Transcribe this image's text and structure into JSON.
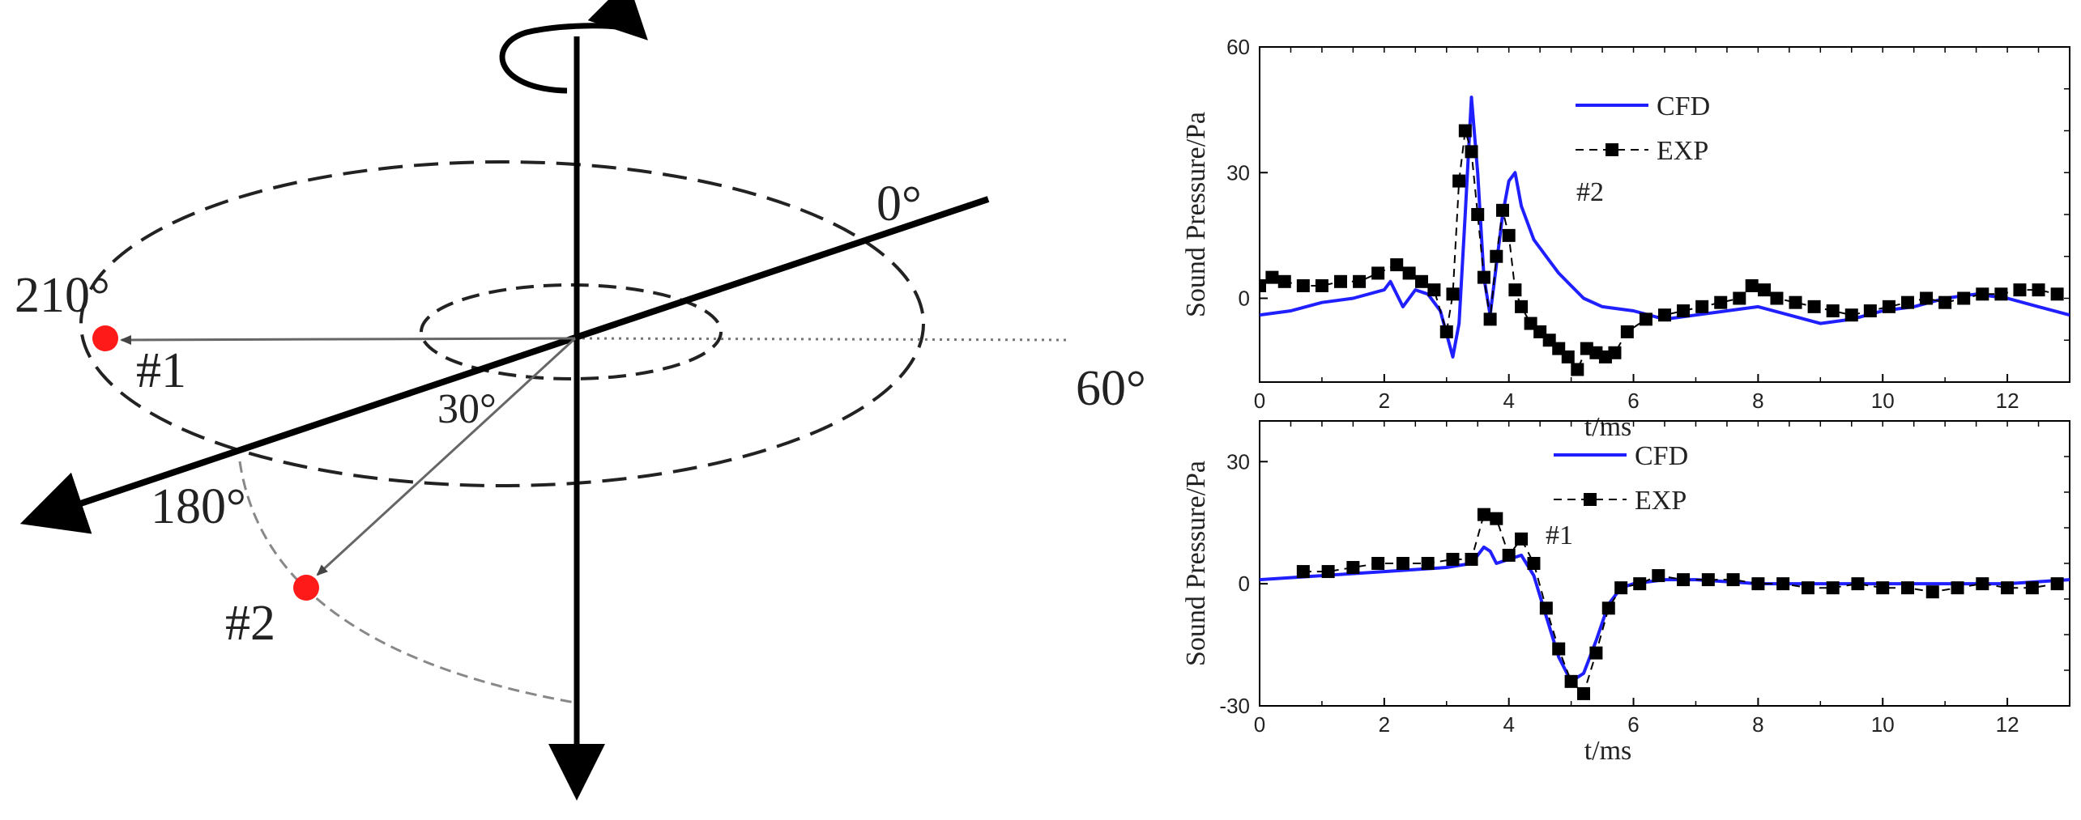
{
  "diagram": {
    "angle_0": "0°",
    "angle_60": "60°",
    "angle_180": "180°",
    "angle_210": "210°",
    "angle_30": "30°",
    "mic_1": "#1",
    "mic_2": "#2",
    "colors": {
      "microphone": "#ff1a1a",
      "axis": "#000000",
      "guide": "#555555"
    }
  },
  "chart_data": [
    {
      "type": "line",
      "xlabel": "t/ms",
      "ylabel": "Sound Pressure/Pa",
      "xlim": [
        0,
        13
      ],
      "ylim": [
        -20,
        60
      ],
      "xticks": [
        0,
        2,
        4,
        6,
        8,
        10,
        12
      ],
      "yticks": [
        0,
        30,
        60
      ],
      "annotation": "#2",
      "legend_position": "top-center",
      "series": [
        {
          "name": "CFD",
          "color": "#1f1fff",
          "style": "line",
          "x": [
            0,
            0.5,
            1.0,
            1.5,
            2.0,
            2.1,
            2.3,
            2.5,
            2.7,
            2.9,
            3.1,
            3.2,
            3.3,
            3.4,
            3.5,
            3.6,
            3.7,
            3.8,
            3.9,
            4.0,
            4.1,
            4.2,
            4.4,
            4.6,
            4.8,
            5.0,
            5.2,
            5.5,
            6.0,
            6.5,
            7.0,
            7.5,
            8.0,
            8.5,
            9.0,
            9.5,
            10.0,
            10.5,
            11.0,
            11.5,
            12.0,
            12.5,
            13.0
          ],
          "y": [
            -4,
            -3,
            -1,
            0,
            2,
            4,
            -2,
            2,
            1,
            -3,
            -14,
            -6,
            20,
            48,
            30,
            5,
            -4,
            8,
            20,
            28,
            30,
            22,
            14,
            10,
            6,
            3,
            0,
            -2,
            -3,
            -5,
            -4,
            -3,
            -2,
            -4,
            -6,
            -5,
            -3,
            -2,
            0,
            1,
            0,
            -2,
            -4
          ]
        },
        {
          "name": "EXP",
          "color": "#000000",
          "style": "dashed-square-markers",
          "x": [
            0.0,
            0.2,
            0.4,
            0.7,
            1.0,
            1.3,
            1.6,
            1.9,
            2.2,
            2.4,
            2.6,
            2.8,
            3.0,
            3.1,
            3.2,
            3.3,
            3.4,
            3.5,
            3.6,
            3.7,
            3.8,
            3.9,
            4.0,
            4.1,
            4.2,
            4.35,
            4.5,
            4.65,
            4.8,
            4.95,
            5.1,
            5.25,
            5.4,
            5.55,
            5.7,
            5.9,
            6.2,
            6.5,
            6.8,
            7.1,
            7.4,
            7.7,
            7.9,
            8.1,
            8.3,
            8.6,
            8.9,
            9.2,
            9.5,
            9.8,
            10.1,
            10.4,
            10.7,
            11.0,
            11.3,
            11.6,
            11.9,
            12.2,
            12.5,
            12.8
          ],
          "y": [
            3,
            5,
            4,
            3,
            3,
            4,
            4,
            6,
            8,
            6,
            4,
            2,
            -8,
            1,
            28,
            40,
            35,
            20,
            5,
            -5,
            10,
            21,
            15,
            2,
            -2,
            -6,
            -8,
            -10,
            -12,
            -14,
            -17,
            -12,
            -13,
            -14,
            -13,
            -8,
            -5,
            -4,
            -3,
            -2,
            -1,
            0,
            3,
            2,
            0,
            -1,
            -2,
            -3,
            -4,
            -3,
            -2,
            -1,
            0,
            -1,
            0,
            1,
            1,
            2,
            2,
            1
          ]
        }
      ]
    },
    {
      "type": "line",
      "xlabel": "t/ms",
      "ylabel": "Sound Pressure/Pa",
      "xlim": [
        0,
        13
      ],
      "ylim": [
        -30,
        40
      ],
      "xticks": [
        0,
        2,
        4,
        6,
        8,
        10,
        12
      ],
      "yticks": [
        -30,
        0,
        30
      ],
      "annotation": "#1",
      "legend_position": "top-center",
      "series": [
        {
          "name": "CFD",
          "color": "#1f1fff",
          "style": "line",
          "x": [
            0,
            1.0,
            2.0,
            3.0,
            3.4,
            3.6,
            3.7,
            3.8,
            4.0,
            4.2,
            4.4,
            4.6,
            4.8,
            5.0,
            5.2,
            5.4,
            5.6,
            5.8,
            6.0,
            6.5,
            7.0,
            8.0,
            9.0,
            10.0,
            11.0,
            12.0,
            13.0
          ],
          "y": [
            1,
            2,
            3,
            4,
            5,
            9,
            8,
            5,
            6,
            7,
            2,
            -8,
            -18,
            -24,
            -22,
            -14,
            -5,
            -1,
            0,
            1,
            1,
            0,
            0,
            0,
            0,
            0,
            1
          ]
        },
        {
          "name": "EXP",
          "color": "#000000",
          "style": "dashed-square-markers",
          "x": [
            0.7,
            1.1,
            1.5,
            1.9,
            2.3,
            2.7,
            3.1,
            3.4,
            3.6,
            3.8,
            4.0,
            4.2,
            4.4,
            4.6,
            4.8,
            5.0,
            5.2,
            5.4,
            5.6,
            5.8,
            6.1,
            6.4,
            6.8,
            7.2,
            7.6,
            8.0,
            8.4,
            8.8,
            9.2,
            9.6,
            10.0,
            10.4,
            10.8,
            11.2,
            11.6,
            12.0,
            12.4,
            12.8
          ],
          "y": [
            3,
            3,
            4,
            5,
            5,
            5,
            6,
            6,
            17,
            16,
            7,
            11,
            5,
            -6,
            -16,
            -24,
            -27,
            -17,
            -6,
            -1,
            0,
            2,
            1,
            1,
            1,
            0,
            0,
            -1,
            -1,
            0,
            -1,
            -1,
            -2,
            -1,
            0,
            -1,
            -1,
            0
          ]
        }
      ]
    }
  ]
}
